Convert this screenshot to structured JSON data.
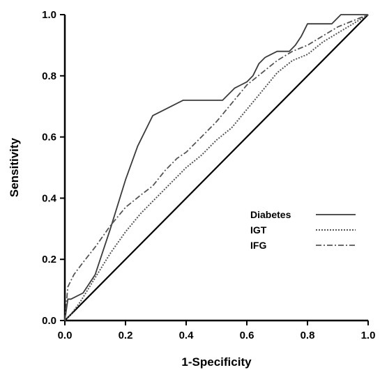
{
  "chart_data": {
    "type": "line",
    "title": "",
    "xlabel": "1-Specificity",
    "ylabel": "Sensitivity",
    "xlim": [
      0,
      1
    ],
    "ylim": [
      0,
      1
    ],
    "x_ticks": [
      "0.0",
      "0.2",
      "0.4",
      "0.6",
      "0.8",
      "1.0"
    ],
    "y_ticks": [
      "0.0",
      "0.2",
      "0.4",
      "0.6",
      "0.8",
      "1.0"
    ],
    "grid": false,
    "legend_position": "lower-right",
    "reference_line": {
      "x": [
        0,
        1
      ],
      "y": [
        0,
        1
      ]
    },
    "series": [
      {
        "name": "Diabetes",
        "style": "solid",
        "x": [
          0,
          0.01,
          0.02,
          0.06,
          0.1,
          0.15,
          0.2,
          0.24,
          0.29,
          0.35,
          0.39,
          0.45,
          0.52,
          0.56,
          0.58,
          0.6,
          0.62,
          0.64,
          0.66,
          0.68,
          0.7,
          0.74,
          0.76,
          0.78,
          0.8,
          0.84,
          0.88,
          0.91,
          0.95,
          1.0
        ],
        "y": [
          0,
          0.07,
          0.07,
          0.09,
          0.15,
          0.3,
          0.46,
          0.57,
          0.67,
          0.7,
          0.72,
          0.72,
          0.72,
          0.76,
          0.77,
          0.78,
          0.8,
          0.84,
          0.86,
          0.87,
          0.88,
          0.88,
          0.9,
          0.93,
          0.97,
          0.97,
          0.97,
          1.0,
          1.0,
          1.0
        ]
      },
      {
        "name": "IGT",
        "style": "dotted",
        "x": [
          0,
          0.02,
          0.05,
          0.1,
          0.15,
          0.2,
          0.25,
          0.3,
          0.35,
          0.4,
          0.45,
          0.5,
          0.55,
          0.6,
          0.65,
          0.7,
          0.75,
          0.8,
          0.85,
          0.9,
          0.95,
          1.0
        ],
        "y": [
          0,
          0.02,
          0.06,
          0.14,
          0.22,
          0.29,
          0.35,
          0.4,
          0.45,
          0.5,
          0.54,
          0.59,
          0.63,
          0.69,
          0.75,
          0.81,
          0.85,
          0.87,
          0.91,
          0.94,
          0.97,
          1.0
        ]
      },
      {
        "name": "IFG",
        "style": "dash-dot",
        "x": [
          0,
          0.01,
          0.03,
          0.06,
          0.1,
          0.15,
          0.2,
          0.25,
          0.29,
          0.33,
          0.37,
          0.4,
          0.45,
          0.5,
          0.55,
          0.6,
          0.65,
          0.7,
          0.75,
          0.8,
          0.85,
          0.9,
          0.95,
          1.0
        ],
        "y": [
          0,
          0.11,
          0.15,
          0.19,
          0.24,
          0.31,
          0.37,
          0.41,
          0.44,
          0.49,
          0.53,
          0.55,
          0.6,
          0.65,
          0.71,
          0.77,
          0.81,
          0.85,
          0.88,
          0.9,
          0.93,
          0.96,
          0.98,
          1.0
        ]
      }
    ]
  }
}
